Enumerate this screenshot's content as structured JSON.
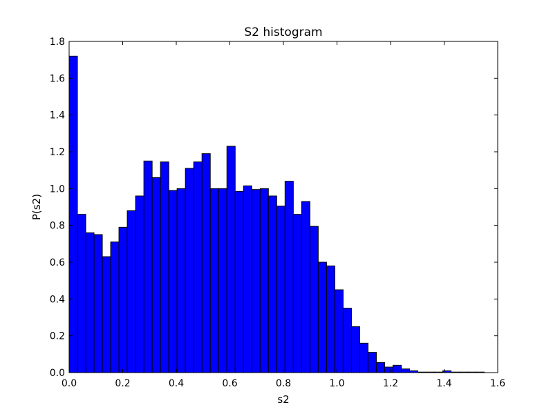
{
  "chart_data": {
    "type": "bar",
    "title": "S2 histogram",
    "xlabel": "s2",
    "ylabel": "P(s2)",
    "xlim": [
      0.0,
      1.6
    ],
    "ylim": [
      0.0,
      1.8
    ],
    "xticks": [
      "0.0",
      "0.2",
      "0.4",
      "0.6",
      "0.8",
      "1.0",
      "1.2",
      "1.4",
      "1.6"
    ],
    "yticks": [
      "0.0",
      "0.2",
      "0.4",
      "0.6",
      "0.8",
      "1.0",
      "1.2",
      "1.4",
      "1.6",
      "1.8"
    ],
    "grid": false,
    "bar_color": "#0000ff",
    "bins": {
      "start": 0.0,
      "width": 0.031,
      "values": [
        1.72,
        0.86,
        0.76,
        0.75,
        0.63,
        0.71,
        0.79,
        0.88,
        0.96,
        1.15,
        1.06,
        1.145,
        0.99,
        1.0,
        1.11,
        1.145,
        1.19,
        1.0,
        1.0,
        1.23,
        0.985,
        1.015,
        0.995,
        1.0,
        0.96,
        0.905,
        1.04,
        0.86,
        0.93,
        0.795,
        0.6,
        0.58,
        0.45,
        0.35,
        0.25,
        0.16,
        0.11,
        0.055,
        0.03,
        0.04,
        0.02,
        0.01,
        0.003,
        0.003,
        0.003,
        0.01,
        0.003,
        0.003,
        0.003,
        0.003
      ]
    }
  }
}
